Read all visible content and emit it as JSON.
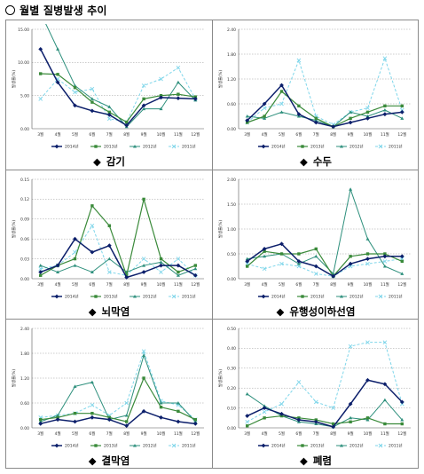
{
  "page": {
    "title": "월별 질병발생 추이"
  },
  "colors": {
    "s2014": "#0c1f6b",
    "s2013": "#3a8a3a",
    "s2012": "#2d8f7c",
    "s2011": "#7fd6ea"
  },
  "chart_data": [
    {
      "id": "cold",
      "type": "line",
      "title": "감기",
      "ylabel": "발생률(%)",
      "categories": [
        "3월",
        "4월",
        "5월",
        "6월",
        "7월",
        "8월",
        "9월",
        "10월",
        "11월",
        "12월"
      ],
      "ylim": [
        0,
        15
      ],
      "yticks": [
        "0.00",
        "5.00",
        "10.00",
        "15.00"
      ],
      "ytick_values": [
        0,
        5,
        10,
        15
      ],
      "series": [
        {
          "name": "2014년",
          "values": [
            12.0,
            7.0,
            3.5,
            2.7,
            2.1,
            0.5,
            3.5,
            4.7,
            4.6,
            4.5
          ]
        },
        {
          "name": "2013년",
          "values": [
            8.3,
            8.2,
            6.2,
            4.0,
            2.5,
            1.0,
            4.5,
            5.0,
            5.2,
            4.8
          ]
        },
        {
          "name": "2012년",
          "values": [
            17.5,
            12.0,
            6.5,
            4.5,
            3.3,
            0.3,
            3.0,
            3.0,
            7.0,
            4.3
          ]
        },
        {
          "name": "2011년",
          "values": [
            4.5,
            7.5,
            5.5,
            6.0,
            1.5,
            1.0,
            6.5,
            7.5,
            9.2,
            4.5
          ]
        }
      ],
      "legend_position": "bottom"
    },
    {
      "id": "chickenpox",
      "type": "line",
      "title": "수두",
      "ylabel": "발생률(%)",
      "categories": [
        "3월",
        "4월",
        "5월",
        "6월",
        "7월",
        "8월",
        "9월",
        "10월",
        "11월",
        "12월"
      ],
      "ylim": [
        0,
        2.4
      ],
      "yticks": [
        "0.00",
        "0.60",
        "1.20",
        "1.80",
        "2.40"
      ],
      "ytick_values": [
        0,
        0.6,
        1.2,
        1.8,
        2.4
      ],
      "series": [
        {
          "name": "2014년",
          "values": [
            0.2,
            0.6,
            1.05,
            0.35,
            0.15,
            0.05,
            0.15,
            0.25,
            0.35,
            0.4
          ]
        },
        {
          "name": "2013년",
          "values": [
            0.15,
            0.3,
            0.9,
            0.55,
            0.25,
            0.05,
            0.25,
            0.4,
            0.55,
            0.55
          ]
        },
        {
          "name": "2012년",
          "values": [
            0.3,
            0.25,
            0.4,
            0.3,
            0.2,
            0.05,
            0.4,
            0.3,
            0.45,
            0.25
          ]
        },
        {
          "name": "2011년",
          "values": [
            0.15,
            0.5,
            0.6,
            1.65,
            0.3,
            0.1,
            0.4,
            0.5,
            1.7,
            0.45
          ]
        }
      ],
      "legend_position": "bottom"
    },
    {
      "id": "meningitis",
      "type": "line",
      "title": "뇌막염",
      "ylabel": "발생률(%)",
      "categories": [
        "3월",
        "4월",
        "5월",
        "6월",
        "7월",
        "8월",
        "9월",
        "10월",
        "11월",
        "12월"
      ],
      "ylim": [
        0,
        0.15
      ],
      "yticks": [
        "0.00",
        "0.03",
        "0.06",
        "0.09",
        "0.12",
        "0.15"
      ],
      "ytick_values": [
        0,
        0.03,
        0.06,
        0.09,
        0.12,
        0.15
      ],
      "series": [
        {
          "name": "2014년",
          "values": [
            0.01,
            0.02,
            0.06,
            0.04,
            0.05,
            0.002,
            0.01,
            0.02,
            0.02,
            0.005
          ]
        },
        {
          "name": "2013년",
          "values": [
            0.005,
            0.02,
            0.03,
            0.11,
            0.08,
            0.005,
            0.12,
            0.03,
            0.01,
            0.02
          ]
        },
        {
          "name": "2012년",
          "values": [
            0.02,
            0.01,
            0.02,
            0.01,
            0.03,
            0.01,
            0.02,
            0.025,
            0.005,
            0.015
          ]
        },
        {
          "name": "2011년",
          "values": [
            0.015,
            0.02,
            0.04,
            0.08,
            0.01,
            0.005,
            0.03,
            0.01,
            0.03,
            0.005
          ]
        }
      ],
      "legend_position": "bottom"
    },
    {
      "id": "parotitis",
      "type": "line",
      "title": "유행성이하선염",
      "ylabel": "발생률(%)",
      "categories": [
        "3월",
        "4월",
        "5월",
        "6월",
        "7월",
        "8월",
        "9월",
        "10월",
        "11월",
        "12월"
      ],
      "ylim": [
        0,
        2.0
      ],
      "yticks": [
        "0.00",
        "0.50",
        "1.00",
        "1.50",
        "2.00"
      ],
      "ytick_values": [
        0,
        0.5,
        1,
        1.5,
        2
      ],
      "series": [
        {
          "name": "2014년",
          "values": [
            0.35,
            0.6,
            0.7,
            0.35,
            0.25,
            0.05,
            0.3,
            0.4,
            0.45,
            0.45
          ]
        },
        {
          "name": "2013년",
          "values": [
            0.25,
            0.55,
            0.5,
            0.5,
            0.6,
            0.05,
            0.45,
            0.5,
            0.5,
            0.35
          ]
        },
        {
          "name": "2012년",
          "values": [
            0.4,
            0.45,
            0.5,
            0.3,
            0.45,
            0.1,
            1.8,
            0.8,
            0.25,
            0.1
          ]
        },
        {
          "name": "2011년",
          "values": [
            0.3,
            0.2,
            0.3,
            0.25,
            0.1,
            0.05,
            0.25,
            0.3,
            0.35,
            0.4
          ]
        }
      ],
      "legend_position": "bottom"
    },
    {
      "id": "conjunctivitis",
      "type": "line",
      "title": "결막염",
      "ylabel": "발생률(%)",
      "categories": [
        "3월",
        "4월",
        "5월",
        "6월",
        "7월",
        "8월",
        "9월",
        "10월",
        "11월",
        "12월"
      ],
      "ylim": [
        0,
        2.4
      ],
      "yticks": [
        "0.00",
        "0.60",
        "1.20",
        "1.80",
        "2.40"
      ],
      "ytick_values": [
        0,
        0.6,
        1.2,
        1.8,
        2.4
      ],
      "series": [
        {
          "name": "2014년",
          "values": [
            0.1,
            0.2,
            0.15,
            0.25,
            0.2,
            0.05,
            0.4,
            0.25,
            0.15,
            0.1
          ]
        },
        {
          "name": "2013년",
          "values": [
            0.2,
            0.25,
            0.35,
            0.35,
            0.25,
            0.15,
            1.2,
            0.5,
            0.4,
            0.2
          ]
        },
        {
          "name": "2012년",
          "values": [
            0.15,
            0.3,
            1.0,
            1.1,
            0.2,
            0.3,
            1.75,
            0.6,
            0.6,
            0.15
          ]
        },
        {
          "name": "2011년",
          "values": [
            0.25,
            0.3,
            0.35,
            0.55,
            0.3,
            0.6,
            1.85,
            0.65,
            0.55,
            0.2
          ]
        }
      ],
      "legend_position": "bottom"
    },
    {
      "id": "pneumonia",
      "type": "line",
      "title": "폐렴",
      "ylabel": "발생률(%)",
      "categories": [
        "3월",
        "4월",
        "5월",
        "6월",
        "7월",
        "8월",
        "9월",
        "10월",
        "11월",
        "12월"
      ],
      "ylim": [
        0,
        0.5
      ],
      "yticks": [
        "0.00",
        "0.10",
        "0.20",
        "0.30",
        "0.40",
        "0.50"
      ],
      "ytick_values": [
        0,
        0.1,
        0.2,
        0.3,
        0.4,
        0.5
      ],
      "series": [
        {
          "name": "2014년",
          "values": [
            0.06,
            0.1,
            0.07,
            0.04,
            0.03,
            0.005,
            0.12,
            0.24,
            0.22,
            0.13
          ]
        },
        {
          "name": "2013년",
          "values": [
            0.01,
            0.05,
            0.06,
            0.05,
            0.04,
            0.02,
            0.03,
            0.05,
            0.02,
            0.02
          ]
        },
        {
          "name": "2012년",
          "values": [
            0.17,
            0.11,
            0.06,
            0.03,
            0.02,
            0.005,
            0.05,
            0.04,
            0.14,
            0.04
          ]
        },
        {
          "name": "2011년",
          "values": [
            0.03,
            0.08,
            0.12,
            0.23,
            0.13,
            0.1,
            0.41,
            0.43,
            0.43,
            0.12
          ]
        }
      ],
      "legend_position": "bottom"
    }
  ]
}
